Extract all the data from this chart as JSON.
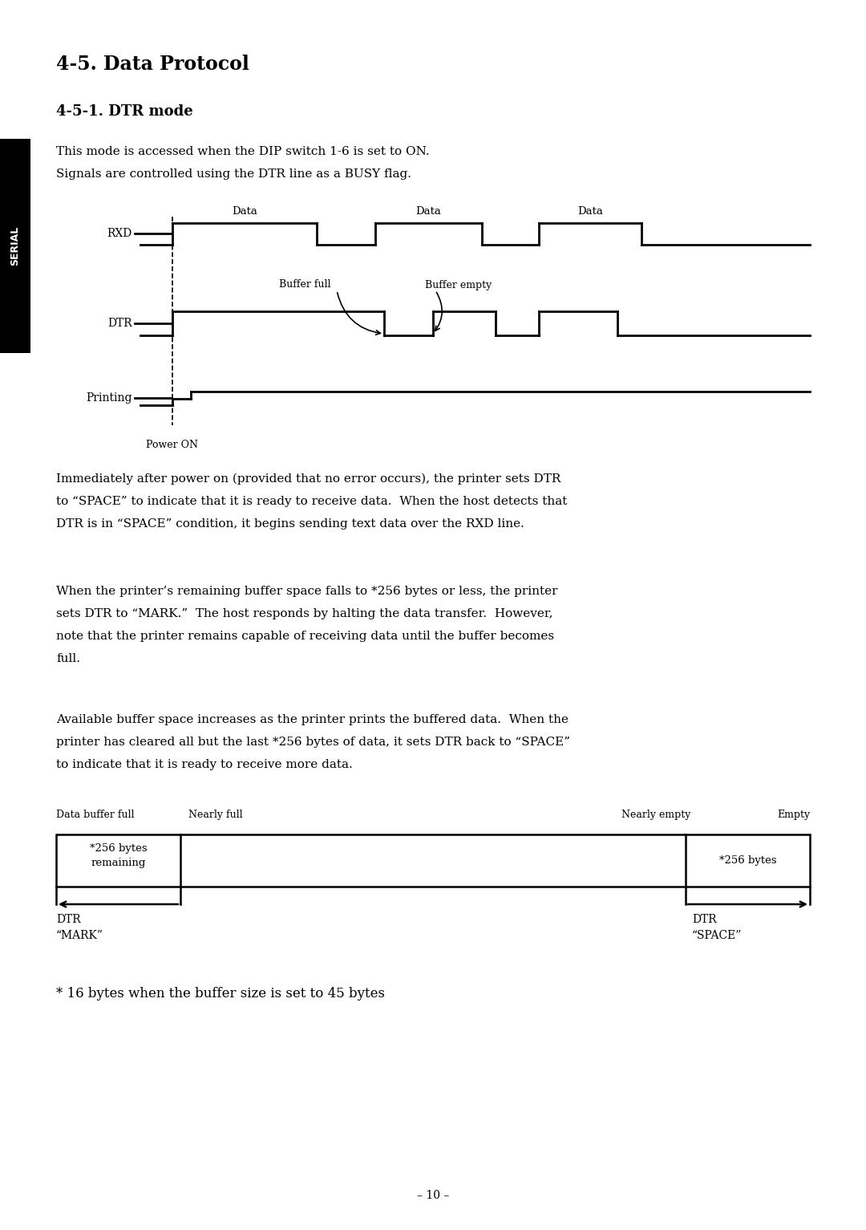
{
  "title": "4-5. Data Protocol",
  "subtitle": "4-5-1. DTR mode",
  "body_text_1": "This mode is accessed when the DIP switch 1-6 is set to ON.\nSignals are controlled using the DTR line as a BUSY flag.",
  "body_text_2": "Immediately after power on (provided that no error occurs), the printer sets DTR\nto “SPACE” to indicate that it is ready to receive data.  When the host detects that\nDTR is in “SPACE” condition, it begins sending text data over the RXD line.",
  "body_text_3": "When the printer’s remaining buffer space falls to *256 bytes or less, the printer\nsets DTR to “MARK.”  The host responds by halting the data transfer.  However,\nnote that the printer remains capable of receiving data until the buffer becomes\nfull.",
  "body_text_4": "Available buffer space increases as the printer prints the buffered data.  When the\nprinter has cleared all but the last *256 bytes of data, it sets DTR back to “SPACE”\nto indicate that it is ready to receive more data.",
  "footnote": "* 16 bytes when the buffer size is set to 45 bytes",
  "page_number": "– 10 –",
  "sidebar_text": "SERIAL",
  "bg_color": "#ffffff",
  "text_color": "#000000",
  "sidebar_bg": "#000000",
  "sidebar_text_color": "#ffffff"
}
